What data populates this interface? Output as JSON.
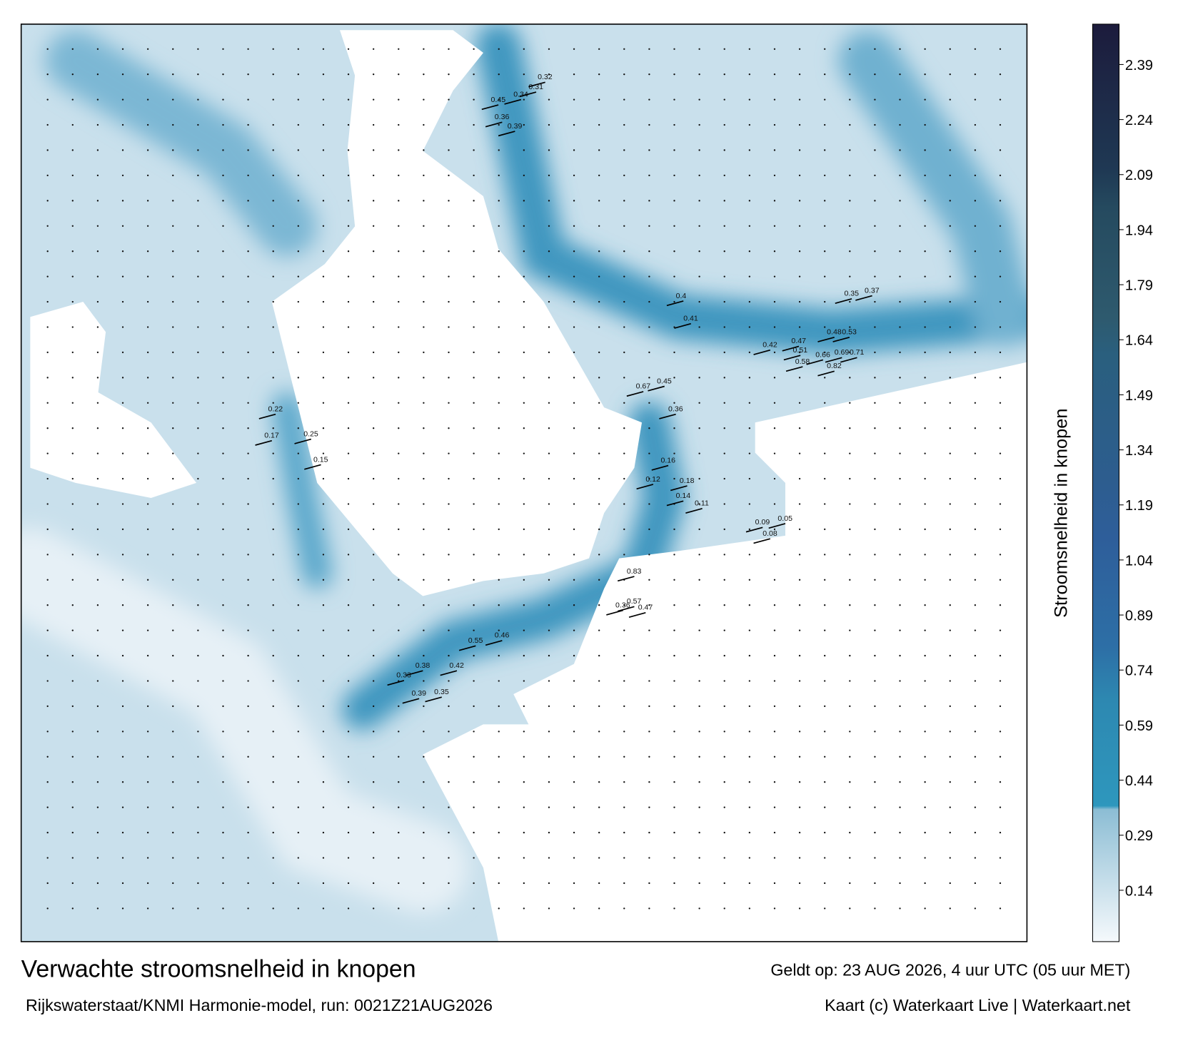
{
  "map": {
    "title": "Verwachte stroomsnelheid in knopen",
    "source": "Rijkswaterstaat/KNMI Harmonie-model, run: 0021Z21AUG2026",
    "valid": "Geldt op: 23 AUG 2026, 4 uur UTC (05 uur MET)",
    "credit": "Kaart (c) Waterkaart Live | Waterkaart.net",
    "colorbar": {
      "label": "Stroomsnelheid in knopen",
      "lim": [
        0,
        2.5
      ],
      "ticks": [
        0.14,
        0.29,
        0.44,
        0.59,
        0.74,
        0.89,
        1.04,
        1.19,
        1.34,
        1.49,
        1.64,
        1.79,
        1.94,
        2.09,
        2.24,
        2.39
      ],
      "stops": [
        [
          0,
          "#f5f9fc"
        ],
        [
          0.36,
          "#8cbdd4"
        ],
        [
          0.37,
          "#2e97bd"
        ],
        [
          0.66,
          "#2d88b1"
        ],
        [
          0.8,
          "#2d6fa6"
        ],
        [
          1.1,
          "#2e5e9a"
        ],
        [
          1.25,
          "#2d5d8f"
        ],
        [
          1.6,
          "#2a5f7e"
        ],
        [
          1.7,
          "#2e5a6e"
        ],
        [
          2.0,
          "#254a5f"
        ],
        [
          2.1,
          "#1f3954"
        ],
        [
          2.5,
          "#1c1b3c"
        ]
      ]
    },
    "current_labels": [
      0.45,
      0.34,
      0.31,
      0.32,
      0.36,
      0.39,
      0.4,
      0.41,
      0.35,
      0.37,
      0.42,
      0.47,
      0.51,
      0.58,
      0.82,
      0.66,
      0.69,
      0.71,
      0.48,
      0.53,
      0.67,
      0.45,
      0.36,
      0.83,
      0.57,
      0.36,
      0.47,
      0.55,
      0.46,
      0.38,
      0.42,
      0.33,
      0.39,
      0.35,
      0.22,
      0.17,
      0.25,
      0.15,
      0.12,
      0.18,
      0.16,
      0.14,
      0.11,
      0.09,
      0.08,
      0.05
    ]
  }
}
